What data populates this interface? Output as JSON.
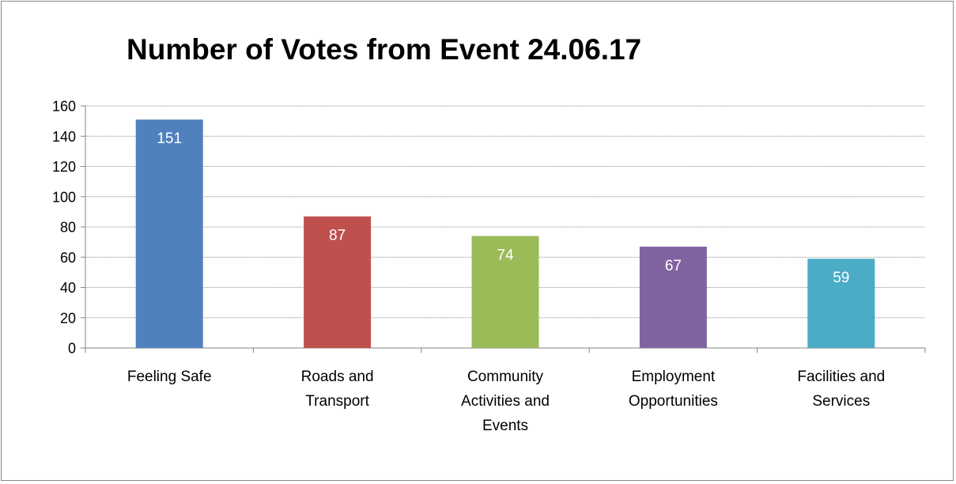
{
  "chart_data": {
    "type": "bar",
    "title": "Number of Votes from Event 24.06.17",
    "categories": [
      [
        "Feeling Safe"
      ],
      [
        "Roads and",
        "Transport"
      ],
      [
        "Community",
        "Activities and",
        "Events"
      ],
      [
        "Employment",
        "Opportunities"
      ],
      [
        "Facilities and",
        "Services"
      ]
    ],
    "values": [
      151,
      87,
      74,
      67,
      59
    ],
    "data_labels": [
      "151",
      "87",
      "74",
      "67",
      "59"
    ],
    "colors": [
      "#4f81bd",
      "#c0504d",
      "#9bbb59",
      "#8064a2",
      "#4bacc6"
    ],
    "ylim": [
      0,
      160
    ],
    "yticks": [
      0,
      20,
      40,
      60,
      80,
      100,
      120,
      140,
      160
    ],
    "grid": true,
    "legend": "none",
    "xlabel": "",
    "ylabel": ""
  }
}
